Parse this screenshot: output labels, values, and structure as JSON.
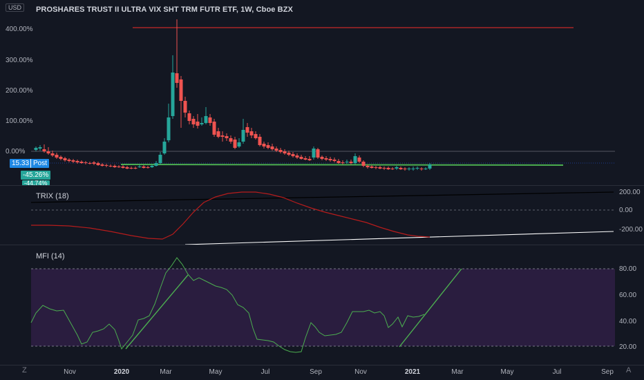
{
  "header": {
    "currency": "USD",
    "title": "PROSHARES TRUST II ULTRA VIX SHT TRM FUTR ETF, 1W, Cboe BZX"
  },
  "price_pane": {
    "y_ticks": [
      "400.00%",
      "300.00%",
      "200.00%",
      "100.00%",
      "0.00%"
    ],
    "last_price": "15.33",
    "post_label": "Post",
    "change_label": "-45.26%",
    "extra_label": "-44.74%",
    "colors": {
      "up": "#26a69a",
      "down": "#ef5350",
      "green_line": "#4caf50",
      "red_line": "#c62828"
    }
  },
  "trix_pane": {
    "title": "TRIX (18)",
    "y_ticks": [
      "200.00",
      "0.00",
      "-200.00"
    ],
    "color": "#b71c1c"
  },
  "mfi_pane": {
    "title": "MFI (14)",
    "y_ticks": [
      "80.00",
      "60.00",
      "40.00",
      "20.00"
    ],
    "color": "#4caf50",
    "band_color": "#2a1d3f"
  },
  "x_axis": {
    "labels": [
      "Nov",
      "2020",
      "Mar",
      "May",
      "Jul",
      "Sep",
      "Nov",
      "2021",
      "Mar",
      "May",
      "Jul",
      "Sep"
    ]
  },
  "bottom": {
    "left_icon": "Z",
    "right_icon": "A"
  }
}
